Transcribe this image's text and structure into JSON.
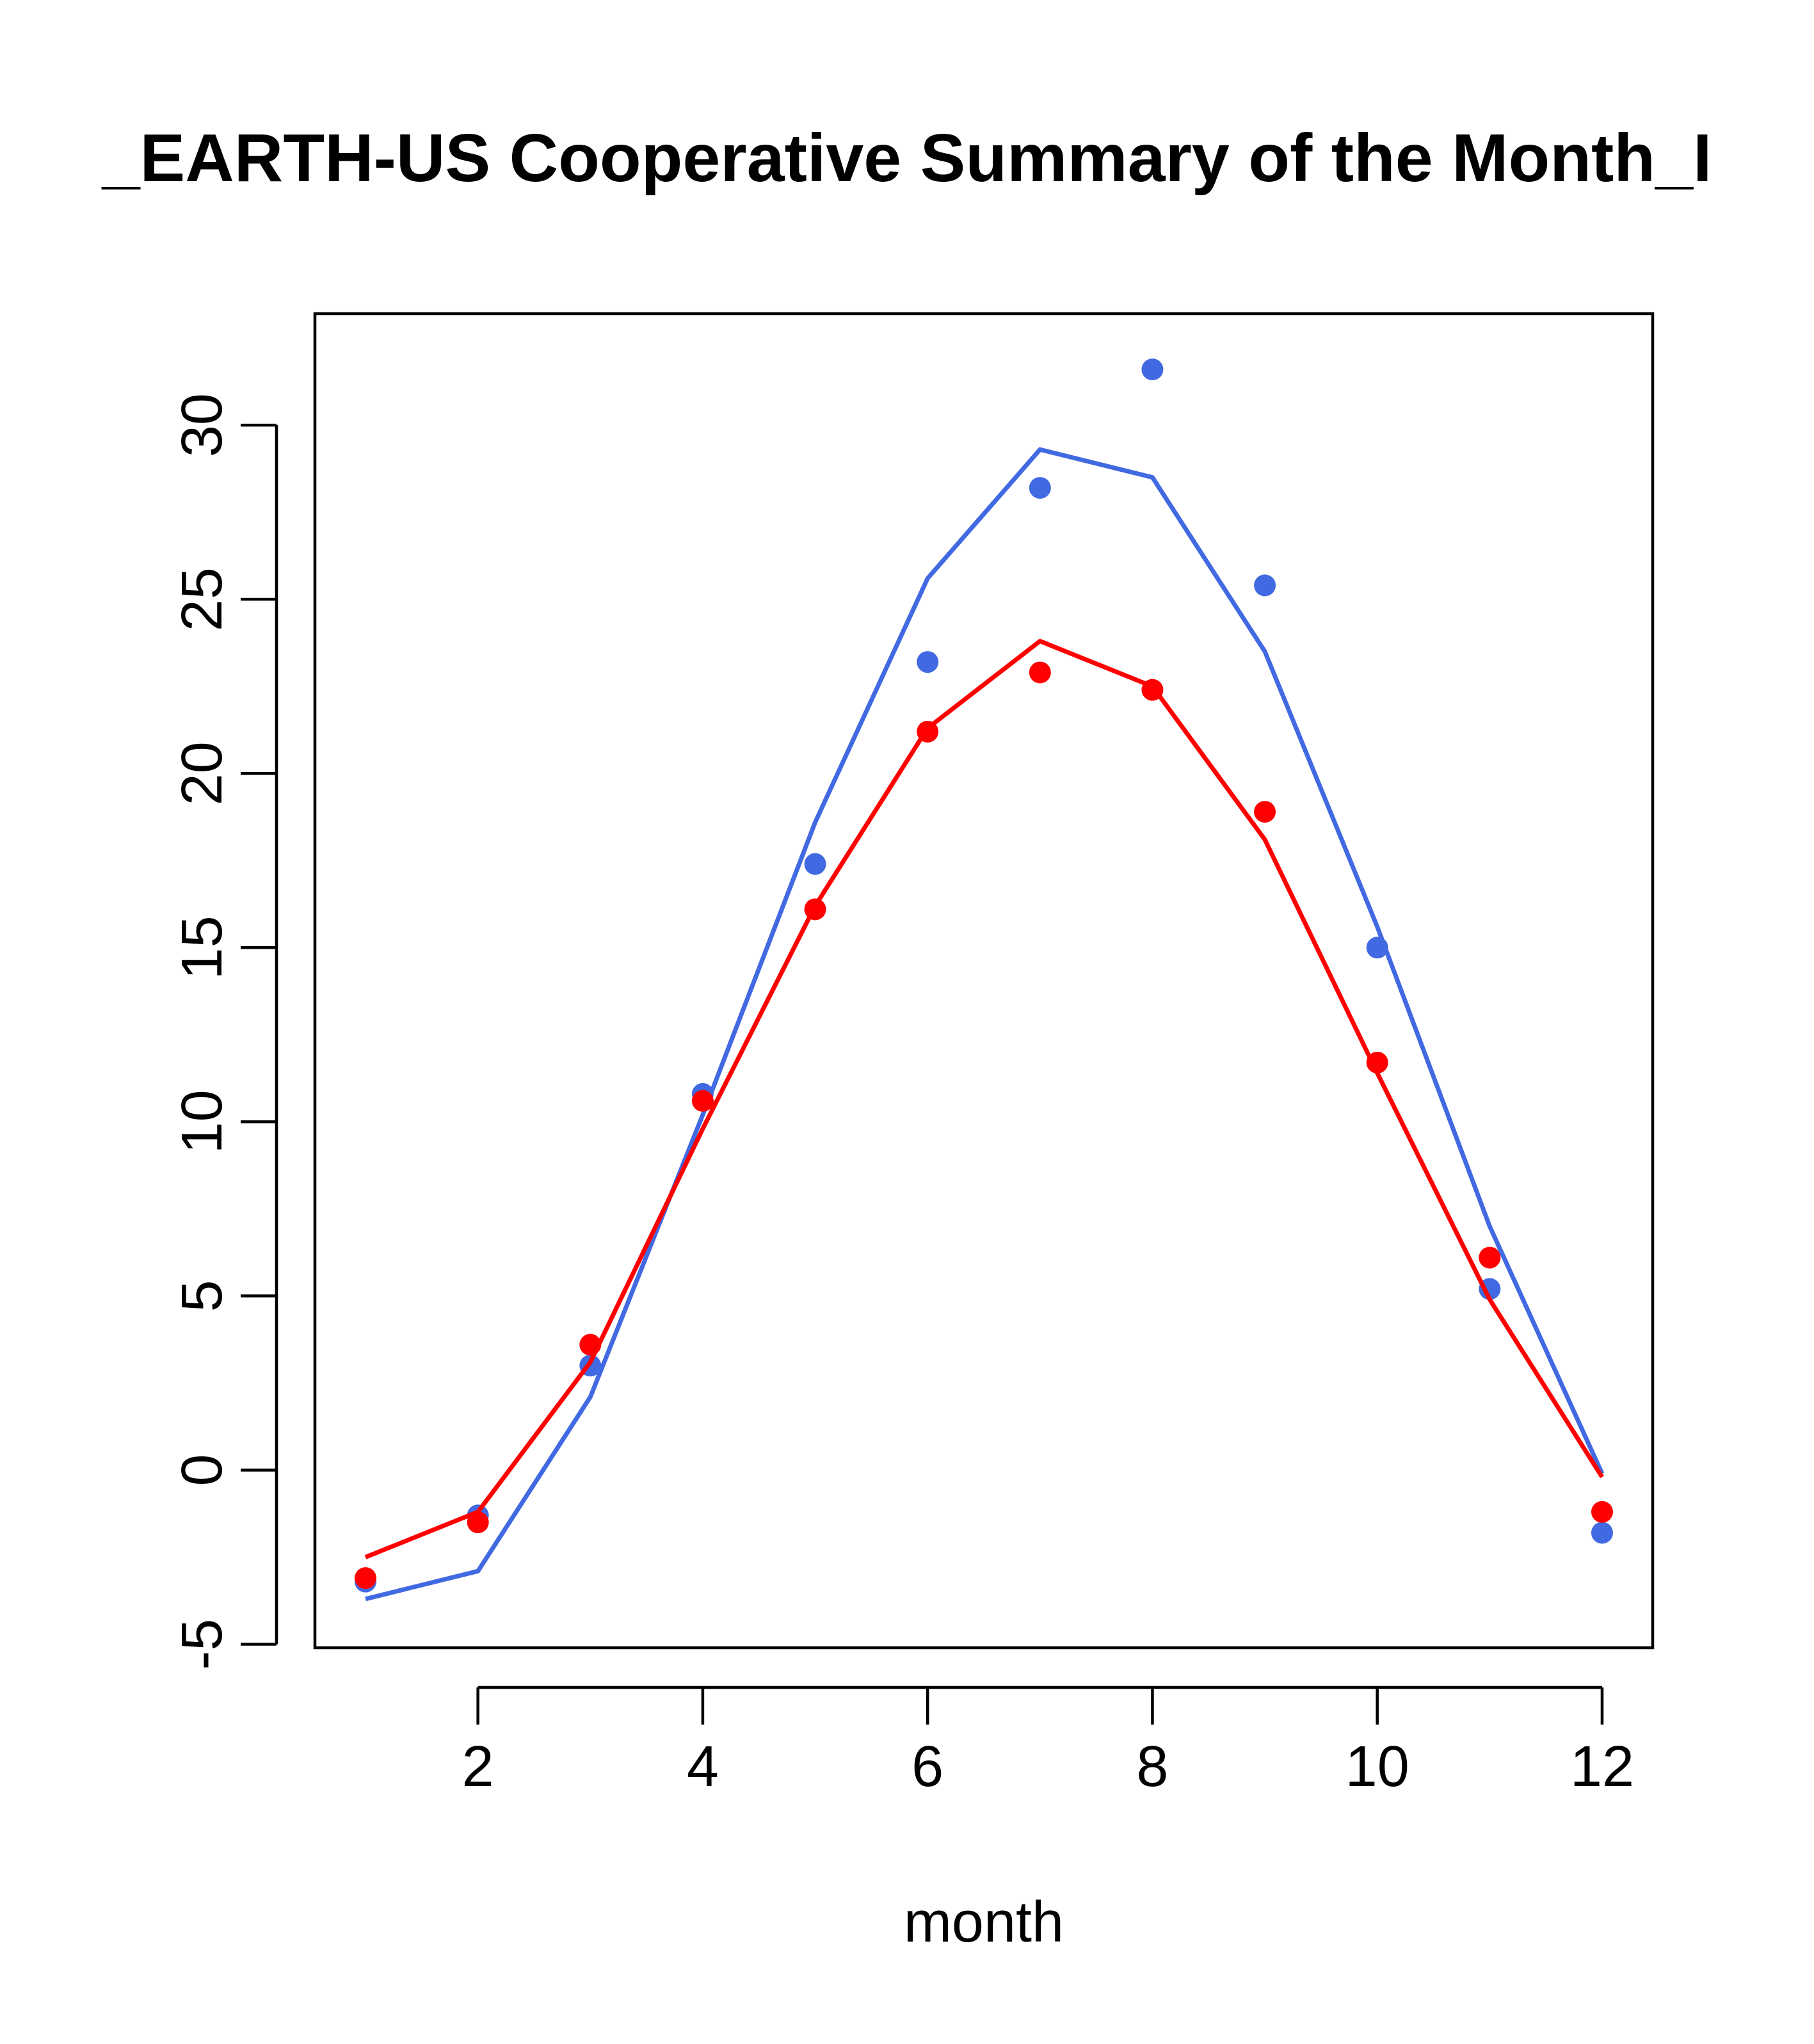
{
  "chart_data": {
    "type": "line",
    "title": "_EARTH-US Cooperative Summary of the Month_I",
    "xlabel": "month",
    "ylabel": "",
    "xlim": [
      0.55,
      12.45
    ],
    "ylim": [
      -5.1,
      33.2
    ],
    "x_ticks": [
      2,
      4,
      6,
      8,
      10,
      12
    ],
    "y_ticks": [
      -5,
      0,
      5,
      10,
      15,
      20,
      25,
      30
    ],
    "grid": false,
    "legend": "none",
    "x": [
      1,
      2,
      3,
      4,
      5,
      6,
      7,
      8,
      9,
      10,
      11,
      12
    ],
    "series": [
      {
        "color": "#4169E1",
        "points": [
          -3.2,
          -1.3,
          3.0,
          10.8,
          17.4,
          23.2,
          28.2,
          31.6,
          25.4,
          15.0,
          5.2,
          -1.8
        ],
        "line": [
          -3.7,
          -2.9,
          2.1,
          10.2,
          18.6,
          25.6,
          29.3,
          28.5,
          23.5,
          15.6,
          7.0,
          -0.1
        ]
      },
      {
        "color": "#FF0000",
        "points": [
          -3.1,
          -1.5,
          3.6,
          10.6,
          16.1,
          21.2,
          22.9,
          22.4,
          18.9,
          11.7,
          6.1,
          -1.2
        ],
        "line": [
          -2.5,
          -1.2,
          3.1,
          9.8,
          16.2,
          21.3,
          23.8,
          22.5,
          18.1,
          11.4,
          4.9,
          -0.2
        ]
      }
    ]
  }
}
